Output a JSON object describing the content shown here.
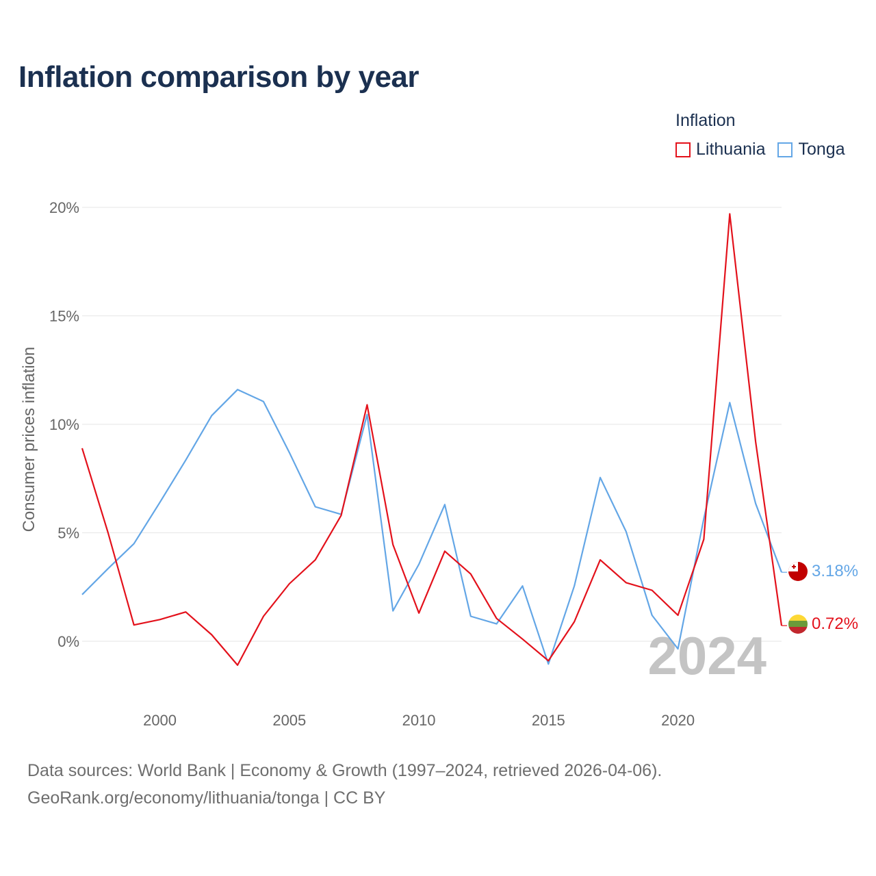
{
  "title": "Inflation comparison by year",
  "legend": {
    "title": "Inflation",
    "items": [
      {
        "label": "Lithuania",
        "color": "#e3111b"
      },
      {
        "label": "Tonga",
        "color": "#63a6e6"
      }
    ]
  },
  "source": {
    "line1": "Data sources: World Bank | Economy & Growth (1997–2024, retrieved 2026-04-06).",
    "line2": "GeoRank.org/economy/lithuania/tonga | CC BY"
  },
  "chart_data": {
    "type": "line",
    "title": "Inflation comparison by year",
    "xlabel": "",
    "ylabel": "Consumer prices inflation",
    "x": [
      1997,
      1998,
      1999,
      2000,
      2001,
      2002,
      2003,
      2004,
      2005,
      2006,
      2007,
      2008,
      2009,
      2010,
      2011,
      2012,
      2013,
      2014,
      2015,
      2016,
      2017,
      2018,
      2019,
      2020,
      2021,
      2022,
      2023,
      2024
    ],
    "xlim": [
      1997,
      2024
    ],
    "ylim": [
      -2,
      21
    ],
    "xticks": [
      2000,
      2005,
      2010,
      2015,
      2020
    ],
    "yticks": [
      0,
      5,
      10,
      15,
      20
    ],
    "ytick_labels": [
      "0%",
      "5%",
      "10%",
      "15%",
      "20%"
    ],
    "xtick_labels": [
      "2000",
      "2005",
      "2010",
      "2015",
      "2020"
    ],
    "grid": true,
    "year_watermark": "2024",
    "series": [
      {
        "name": "Lithuania",
        "color": "#e3111b",
        "values": [
          8.9,
          5.0,
          0.75,
          1.0,
          1.35,
          0.3,
          -1.1,
          1.15,
          2.65,
          3.75,
          5.8,
          10.9,
          4.45,
          1.3,
          4.15,
          3.1,
          1.05,
          0.1,
          -0.9,
          0.9,
          3.75,
          2.7,
          2.35,
          1.2,
          4.7,
          19.7,
          9.2,
          0.72
        ],
        "end_label": "0.72%"
      },
      {
        "name": "Tonga",
        "color": "#63a6e6",
        "values": [
          2.15,
          3.35,
          4.5,
          6.4,
          8.35,
          10.4,
          11.6,
          11.05,
          8.7,
          6.2,
          5.85,
          10.45,
          1.4,
          3.55,
          6.3,
          1.15,
          0.8,
          2.55,
          -1.05,
          2.55,
          7.55,
          5.05,
          1.2,
          -0.35,
          5.65,
          11.0,
          6.35,
          3.18
        ],
        "end_label": "3.18%"
      }
    ]
  }
}
